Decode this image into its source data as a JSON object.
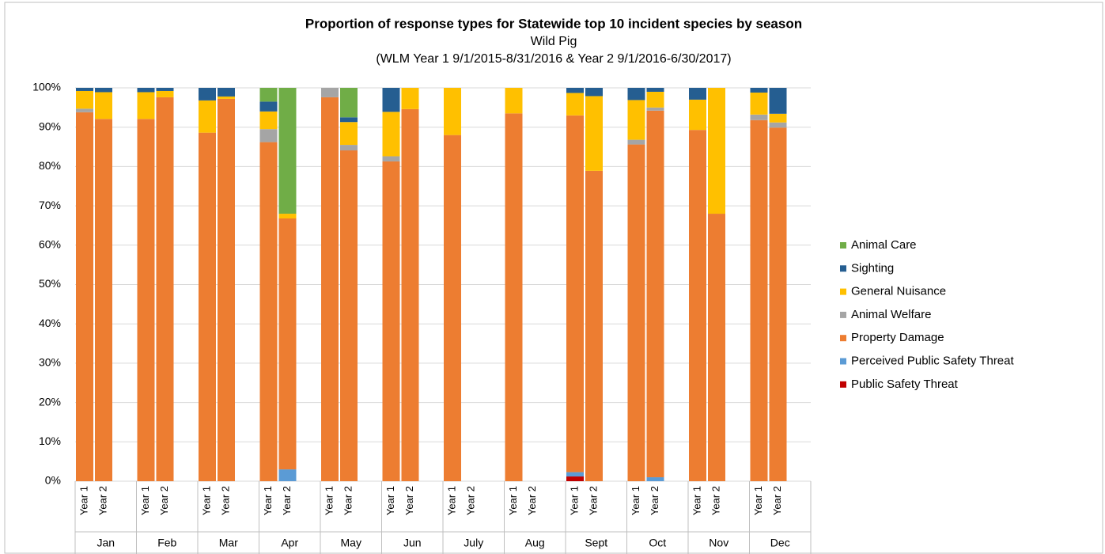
{
  "chart_data": {
    "type": "stacked_bar",
    "title": "Proportion of response types for Statewide top 10 incident species by season",
    "subtitle": "Wild Pig",
    "subtitle2": "(WLM Year 1 9/1/2015-8/31/2016  & Year 2 9/1/2016-6/30/2017)",
    "categories": [
      "Year 1",
      "Year 2",
      "Year 1",
      "Year 2",
      "Year 1",
      "Year 2",
      "Year 1",
      "Year 2",
      "Year 1",
      "Year 2",
      "Year 1",
      "Year 2",
      "Year 1",
      "Year 2",
      "Year 1",
      "Year 2",
      "Year 1",
      "Year 2",
      "Year 1",
      "Year 2",
      "Year 1",
      "Year 2",
      "Year 1",
      "Year 2"
    ],
    "groups": [
      "Jan",
      "Feb",
      "Mar",
      "Apr",
      "May",
      "Jun",
      "July",
      "Aug",
      "Sept",
      "Oct",
      "Nov",
      "Dec"
    ],
    "series": [
      {
        "name": "Public Safety Threat",
        "color": "#c00000",
        "values": [
          0,
          0,
          0,
          0,
          0,
          0,
          0,
          0,
          0,
          0,
          0,
          0,
          0,
          null,
          0,
          null,
          1.2,
          0,
          0,
          0,
          0,
          0,
          0,
          0
        ]
      },
      {
        "name": "Perceived Public Safety Threat",
        "color": "#5b9bd5",
        "values": [
          0,
          0,
          0,
          0,
          0,
          0,
          0,
          3.0,
          0,
          0,
          0,
          0,
          0,
          null,
          0,
          null,
          1.1,
          0,
          0,
          1.0,
          0,
          0,
          0,
          0
        ]
      },
      {
        "name": "Property Damage",
        "color": "#ed7d31",
        "values": [
          93.8,
          92.1,
          92.1,
          97.6,
          88.6,
          97.2,
          86.2,
          63.8,
          97.6,
          84.1,
          81.3,
          94.6,
          88,
          null,
          93.5,
          null,
          90.7,
          78.9,
          85.6,
          93.2,
          89.3,
          68,
          91.8,
          89.9
        ]
      },
      {
        "name": "Animal Welfare",
        "color": "#a5a5a5",
        "values": [
          0.9,
          0,
          0,
          0,
          0,
          0,
          3.3,
          0,
          2.4,
          1.4,
          1.3,
          0,
          0,
          null,
          0,
          null,
          0,
          0,
          1.2,
          0.8,
          0,
          0,
          1.4,
          1.3
        ]
      },
      {
        "name": "General Nuisance",
        "color": "#ffc000",
        "values": [
          4.5,
          6.8,
          6.8,
          1.6,
          8.2,
          0.6,
          4.5,
          1.2,
          0,
          5.8,
          11.3,
          5.4,
          12,
          null,
          6.5,
          null,
          5.7,
          19.0,
          10.1,
          4.0,
          7.7,
          32,
          5.6,
          2.2
        ]
      },
      {
        "name": "Sighting",
        "color": "#255e91",
        "values": [
          0.8,
          1.1,
          1.1,
          0.8,
          3.2,
          2.2,
          2.5,
          0,
          0,
          1.2,
          6.1,
          0,
          0,
          null,
          0,
          null,
          1.3,
          2.1,
          3.1,
          1.0,
          3.0,
          0,
          1.2,
          6.6
        ]
      },
      {
        "name": "Animal Care",
        "color": "#70ad47",
        "values": [
          0,
          0,
          0,
          0,
          0,
          0,
          3.5,
          32.0,
          0,
          7.5,
          0,
          0,
          0,
          null,
          0,
          null,
          0,
          0,
          0,
          0,
          0,
          0,
          0,
          0
        ]
      }
    ],
    "ylim": [
      0,
      100
    ],
    "yticks": [
      {
        "value": 0,
        "label": "0%"
      },
      {
        "value": 10,
        "label": "10%"
      },
      {
        "value": 20,
        "label": "20%"
      },
      {
        "value": 30,
        "label": "30%"
      },
      {
        "value": 40,
        "label": "40%"
      },
      {
        "value": 50,
        "label": "50%"
      },
      {
        "value": 60,
        "label": "60%"
      },
      {
        "value": 70,
        "label": "70%"
      },
      {
        "value": 80,
        "label": "80%"
      },
      {
        "value": 90,
        "label": "90%"
      },
      {
        "value": 100,
        "label": "100%"
      }
    ],
    "grid": true,
    "legend": "right"
  }
}
